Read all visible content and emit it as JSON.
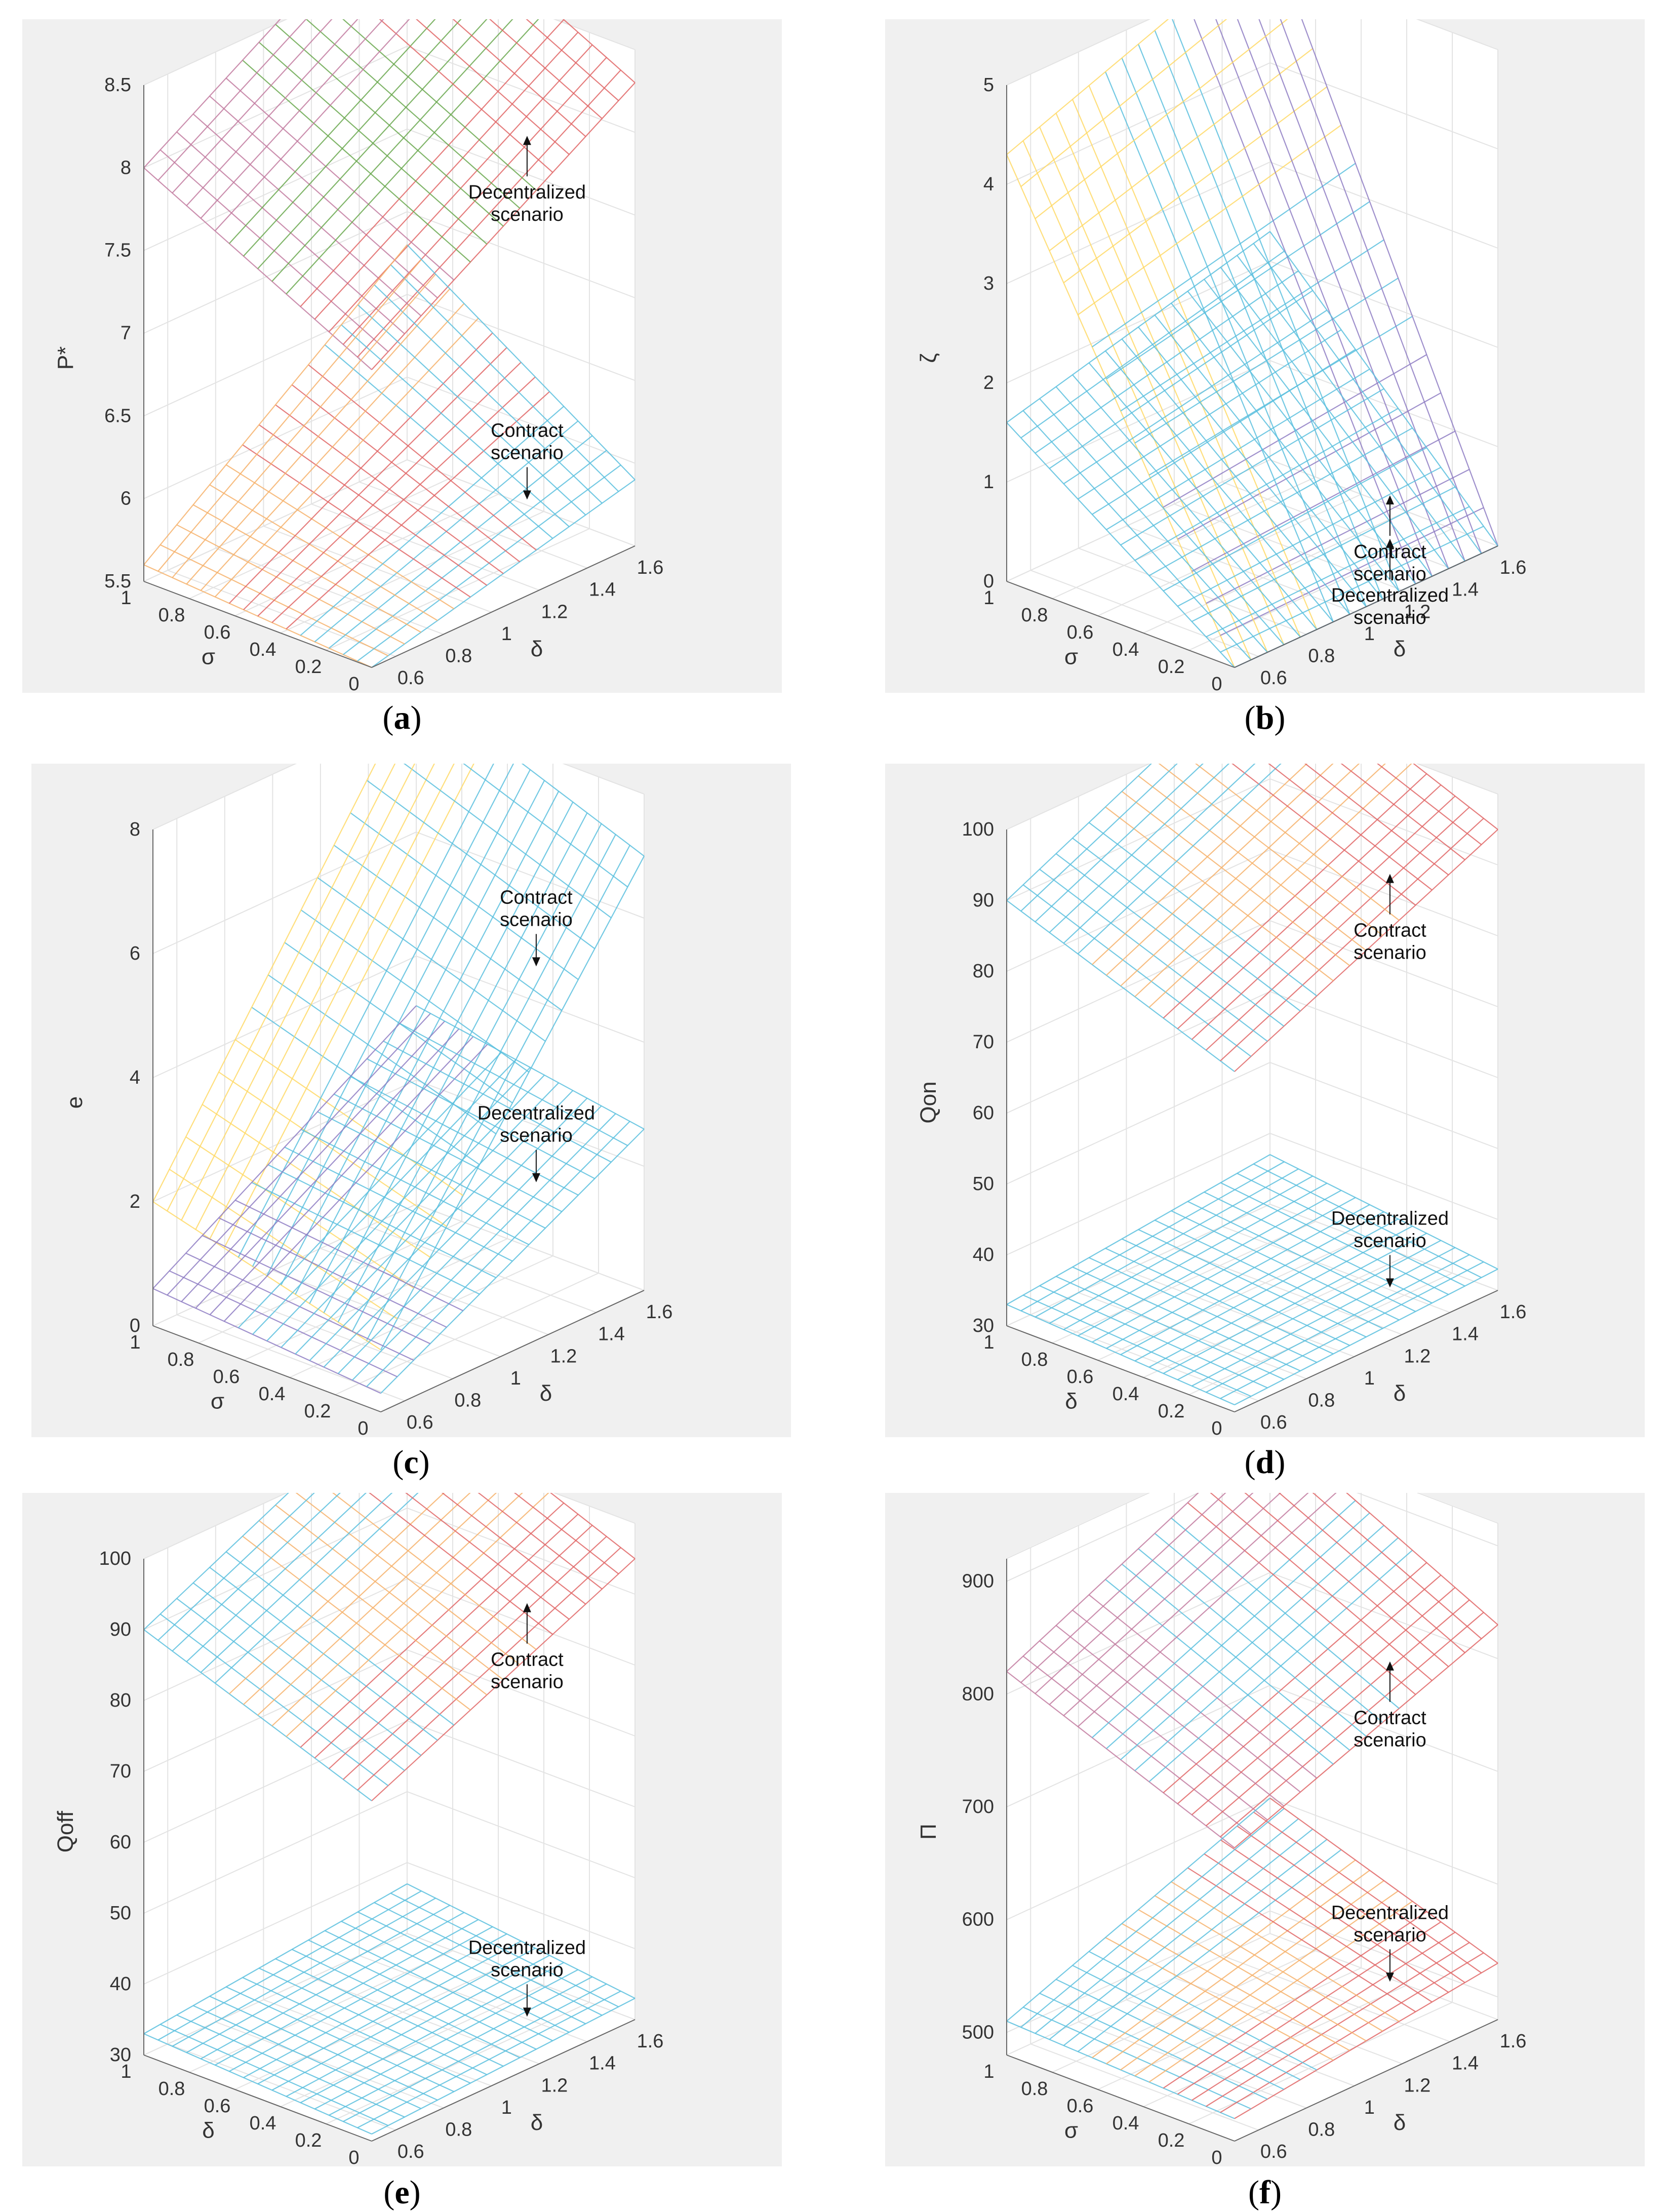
{
  "panels": [
    {
      "letter": "a",
      "zlabel": "P*",
      "zticks": [
        "5.5",
        "6",
        "6.5",
        "7",
        "7.5",
        "8",
        "8.5"
      ],
      "zlim": [
        5.5,
        8.5
      ],
      "annotations": [
        {
          "lines": [
            "Decentralized",
            "scenario"
          ],
          "arrow": "up"
        },
        {
          "lines": [
            "Contract",
            "scenario"
          ],
          "arrow": "down"
        }
      ]
    },
    {
      "letter": "b",
      "zlabel": "ζ",
      "zticks": [
        "0",
        "1",
        "2",
        "3",
        "4",
        "5"
      ],
      "zlim": [
        0,
        5
      ],
      "annotations": [
        {
          "lines": [
            "Contract",
            "scenario"
          ],
          "arrow": "up"
        },
        {
          "lines": [
            "Decentralized",
            "scenario"
          ],
          "arrow": "up"
        }
      ]
    },
    {
      "letter": "c",
      "zlabel": "e",
      "zticks": [
        "0",
        "2",
        "4",
        "6",
        "8"
      ],
      "zlim": [
        0,
        8
      ],
      "annotations": [
        {
          "lines": [
            "Contract",
            "scenario"
          ],
          "arrow": "down"
        },
        {
          "lines": [
            "Decentralized",
            "scenario"
          ],
          "arrow": "down"
        }
      ]
    },
    {
      "letter": "d",
      "zlabel": "Qon",
      "zticks": [
        "30",
        "40",
        "50",
        "60",
        "70",
        "80",
        "90",
        "100"
      ],
      "zlim": [
        30,
        100
      ],
      "annotations": [
        {
          "lines": [
            "Contract",
            "scenario"
          ],
          "arrow": "up"
        },
        {
          "lines": [
            "Decentralized",
            "scenario"
          ],
          "arrow": "down"
        }
      ]
    },
    {
      "letter": "e",
      "zlabel": "Qoff",
      "zticks": [
        "30",
        "40",
        "50",
        "60",
        "70",
        "80",
        "90",
        "100"
      ],
      "zlim": [
        30,
        100
      ],
      "annotations": [
        {
          "lines": [
            "Contract",
            "scenario"
          ],
          "arrow": "up"
        },
        {
          "lines": [
            "Decentralized",
            "scenario"
          ],
          "arrow": "down"
        }
      ]
    },
    {
      "letter": "f",
      "zlabel": "Π",
      "zticks": [
        "500",
        "600",
        "700",
        "800",
        "900"
      ],
      "zlim": [
        480,
        920
      ],
      "annotations": [
        {
          "lines": [
            "Contract",
            "scenario"
          ],
          "arrow": "up"
        },
        {
          "lines": [
            "Decentralized",
            "scenario"
          ],
          "arrow": "down"
        }
      ]
    }
  ],
  "chart_data": [
    {
      "type": "surface",
      "x": {
        "label": "δ",
        "ticks": [
          0.6,
          0.8,
          1,
          1.2,
          1.4,
          1.6
        ],
        "lim": [
          0.5,
          1.6
        ]
      },
      "y": {
        "label": "σ",
        "ticks": [
          0,
          0.2,
          0.4,
          0.6,
          0.8,
          1
        ],
        "lim": [
          0,
          1
        ]
      },
      "z": {
        "label": "P*",
        "lim": [
          5.5,
          8.5
        ]
      },
      "series": [
        {
          "name": "Decentralized scenario",
          "corners": {
            "x0y0": 7.3,
            "x1y0": 8.3,
            "x0y1": 8.0,
            "x1y1": 9.0
          }
        },
        {
          "name": "Contract scenario",
          "corners": {
            "x0y0": 5.5,
            "x1y0": 5.9,
            "x0y1": 5.6,
            "x1y1": 6.8
          }
        }
      ],
      "grid": true
    },
    {
      "type": "surface",
      "x": {
        "label": "δ",
        "ticks": [
          0.6,
          0.8,
          1,
          1.2,
          1.4,
          1.6
        ],
        "lim": [
          0.5,
          1.6
        ]
      },
      "y": {
        "label": "σ",
        "ticks": [
          0,
          0.2,
          0.4,
          0.6,
          0.8,
          1
        ],
        "lim": [
          0,
          1
        ]
      },
      "z": {
        "label": "ζ",
        "lim": [
          0,
          5
        ]
      },
      "series": [
        {
          "name": "Contract scenario",
          "corners": {
            "x0y0": 0,
            "x1y0": 0,
            "x0y1": 4.3,
            "x1y1": 5.3
          }
        },
        {
          "name": "Decentralized scenario",
          "corners": {
            "x0y0": 0,
            "x1y0": 0,
            "x0y1": 1.6,
            "x1y1": 2.3
          }
        }
      ],
      "grid": true
    },
    {
      "type": "surface",
      "x": {
        "label": "δ",
        "ticks": [
          0.6,
          0.8,
          1,
          1.2,
          1.4,
          1.6
        ],
        "lim": [
          0.5,
          1.6
        ]
      },
      "y": {
        "label": "σ",
        "ticks": [
          0,
          0.2,
          0.4,
          0.6,
          0.8,
          1
        ],
        "lim": [
          0,
          1
        ]
      },
      "z": {
        "label": "e",
        "lim": [
          0,
          8
        ]
      },
      "series": [
        {
          "name": "Contract scenario",
          "corners": {
            "x0y0": 1.0,
            "x1y0": 7.0,
            "x0y1": 2.0,
            "x1y1": 8.4
          }
        },
        {
          "name": "Decentralized scenario",
          "corners": {
            "x0y0": 0.3,
            "x1y0": 2.6,
            "x0y1": 0.6,
            "x1y1": 3.2
          }
        }
      ],
      "grid": true
    },
    {
      "type": "surface",
      "x": {
        "label": "δ",
        "ticks": [
          0.6,
          0.8,
          1,
          1.2,
          1.4,
          1.6
        ],
        "lim": [
          0.5,
          1.6
        ]
      },
      "y": {
        "label": "δ",
        "ticks": [
          0,
          0.2,
          0.4,
          0.6,
          0.8,
          1
        ],
        "lim": [
          0,
          1
        ]
      },
      "z": {
        "label": "Qon",
        "lim": [
          30,
          100
        ]
      },
      "series": [
        {
          "name": "Contract scenario",
          "corners": {
            "x0y0": 78,
            "x1y0": 95,
            "x0y1": 90,
            "x1y1": 108
          }
        },
        {
          "name": "Decentralized scenario",
          "corners": {
            "x0y0": 31,
            "x1y0": 33,
            "x0y1": 33,
            "x1y1": 37
          }
        }
      ],
      "grid": true
    },
    {
      "type": "surface",
      "x": {
        "label": "δ",
        "ticks": [
          0.6,
          0.8,
          1,
          1.2,
          1.4,
          1.6
        ],
        "lim": [
          0.5,
          1.6
        ]
      },
      "y": {
        "label": "δ",
        "ticks": [
          0,
          0.2,
          0.4,
          0.6,
          0.8,
          1
        ],
        "lim": [
          0,
          1
        ]
      },
      "z": {
        "label": "Qoff",
        "lim": [
          30,
          100
        ]
      },
      "series": [
        {
          "name": "Contract scenario",
          "corners": {
            "x0y0": 78,
            "x1y0": 95,
            "x0y1": 90,
            "x1y1": 108
          }
        },
        {
          "name": "Decentralized scenario",
          "corners": {
            "x0y0": 31,
            "x1y0": 33,
            "x0y1": 33,
            "x1y1": 37
          }
        }
      ],
      "grid": true
    },
    {
      "type": "surface",
      "x": {
        "label": "δ",
        "ticks": [
          0.6,
          0.8,
          1,
          1.2,
          1.4,
          1.6
        ],
        "lim": [
          0.5,
          1.6
        ]
      },
      "y": {
        "label": "σ",
        "ticks": [
          0,
          0.2,
          0.4,
          0.6,
          0.8,
          1
        ],
        "lim": [
          0,
          1
        ]
      },
      "z": {
        "label": "Π",
        "lim": [
          480,
          920
        ]
      },
      "series": [
        {
          "name": "Contract scenario",
          "corners": {
            "x0y0": 740,
            "x1y0": 830,
            "x0y1": 820,
            "x1y1": 930
          }
        },
        {
          "name": "Decentralized scenario",
          "corners": {
            "x0y0": 500,
            "x1y0": 530,
            "x0y1": 510,
            "x1y1": 600
          }
        }
      ],
      "grid": true
    }
  ]
}
